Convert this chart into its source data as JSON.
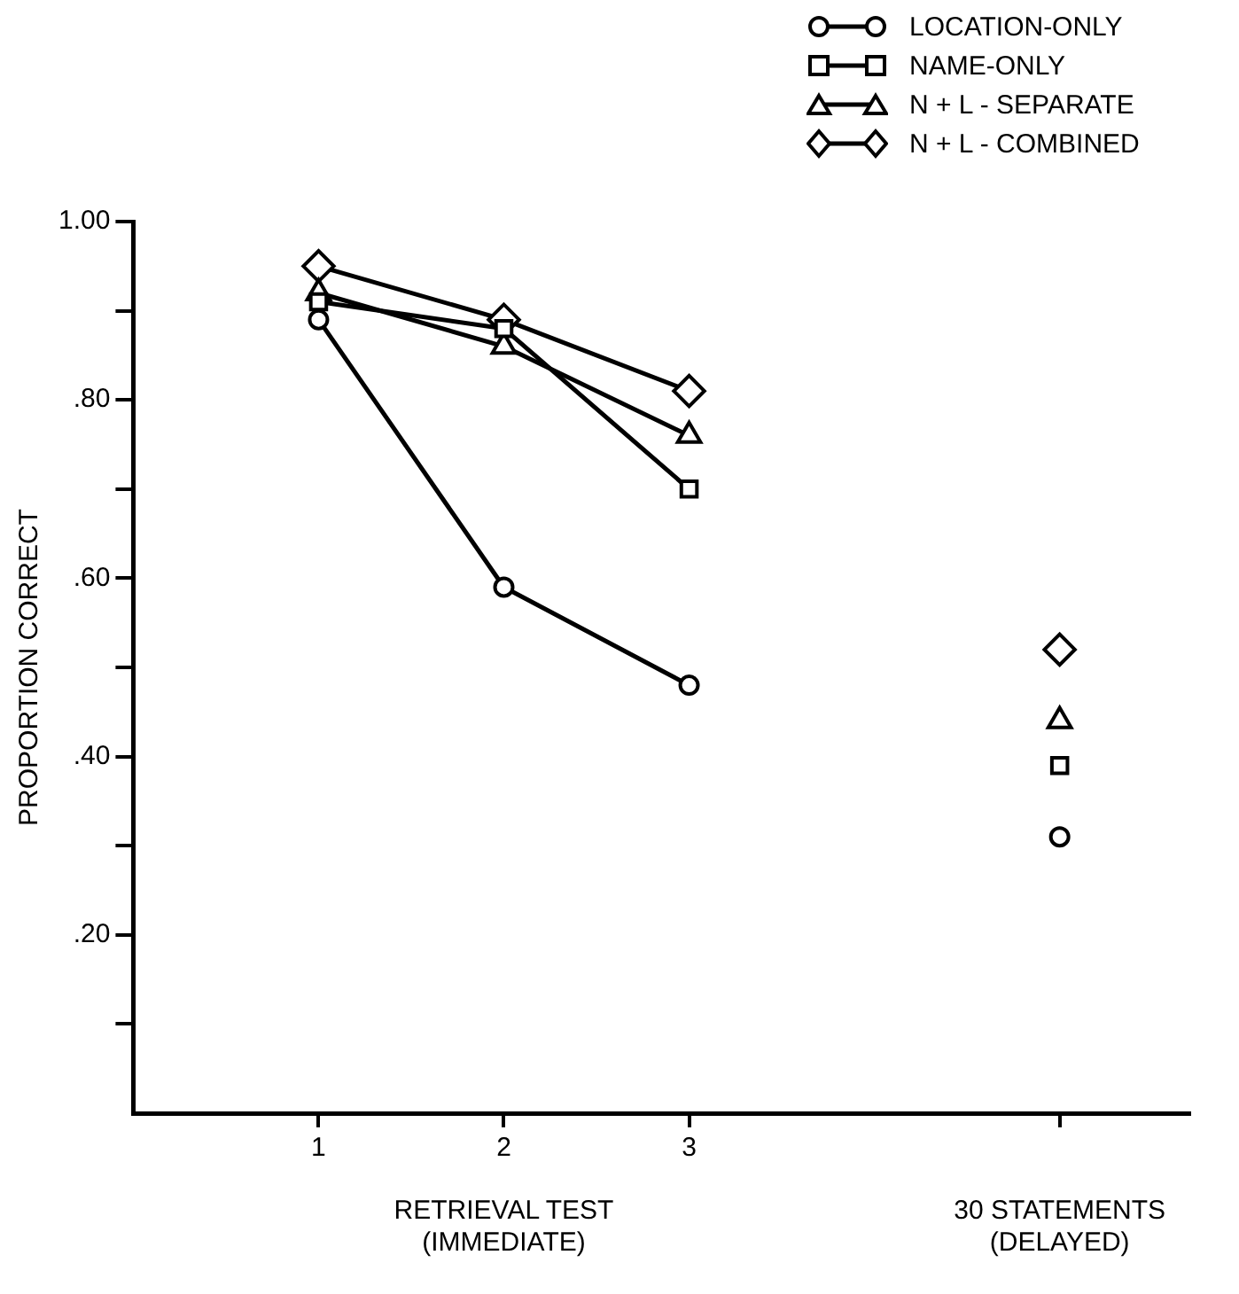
{
  "chart_data": {
    "type": "line",
    "ylabel": "PROPORTION CORRECT",
    "x": [
      1,
      2,
      3,
      4,
      5
    ],
    "series": [
      {
        "name": "LOCATION-ONLY",
        "color": "#000000",
        "marker": "circle",
        "values": [
          0.89,
          0.59,
          0.48,
          null,
          0.31
        ]
      },
      {
        "name": "NAME-ONLY",
        "color": "#000000",
        "marker": "square",
        "values": [
          0.91,
          0.88,
          0.7,
          null,
          0.39
        ]
      },
      {
        "name": "N + L - SEPARATE",
        "color": "#000000",
        "marker": "triangle",
        "values": [
          0.92,
          0.86,
          0.76,
          null,
          0.44
        ]
      },
      {
        "name": "N + L - COMBINED",
        "color": "#000000",
        "marker": "diamond",
        "values": [
          0.95,
          0.89,
          0.81,
          null,
          0.52
        ]
      }
    ],
    "xlim": [
      0,
      5.7
    ],
    "xticks": [
      1,
      2,
      3,
      {
        "value": 5,
        "label": null
      }
    ],
    "ylim": [
      0,
      1
    ],
    "yticks": [
      {
        "value": 0.1,
        "label": null
      },
      {
        "value": 0.2,
        "label": ".20"
      },
      {
        "value": 0.3,
        "label": null
      },
      {
        "value": 0.4,
        "label": ".40"
      },
      {
        "value": 0.5,
        "label": null
      },
      {
        "value": 0.6,
        "label": ".60"
      },
      {
        "value": 0.7,
        "label": null
      },
      {
        "value": 0.8,
        "label": ".80"
      },
      {
        "value": 0.9,
        "label": null
      },
      {
        "value": 1,
        "label": "1.00"
      }
    ],
    "annotations": [
      "RETRIEVAL TEST\n(IMMEDIATE)",
      "30 STATEMENTS\n(DELAYED)"
    ],
    "grid": false,
    "legend": "top right",
    "line_style": "solid"
  }
}
